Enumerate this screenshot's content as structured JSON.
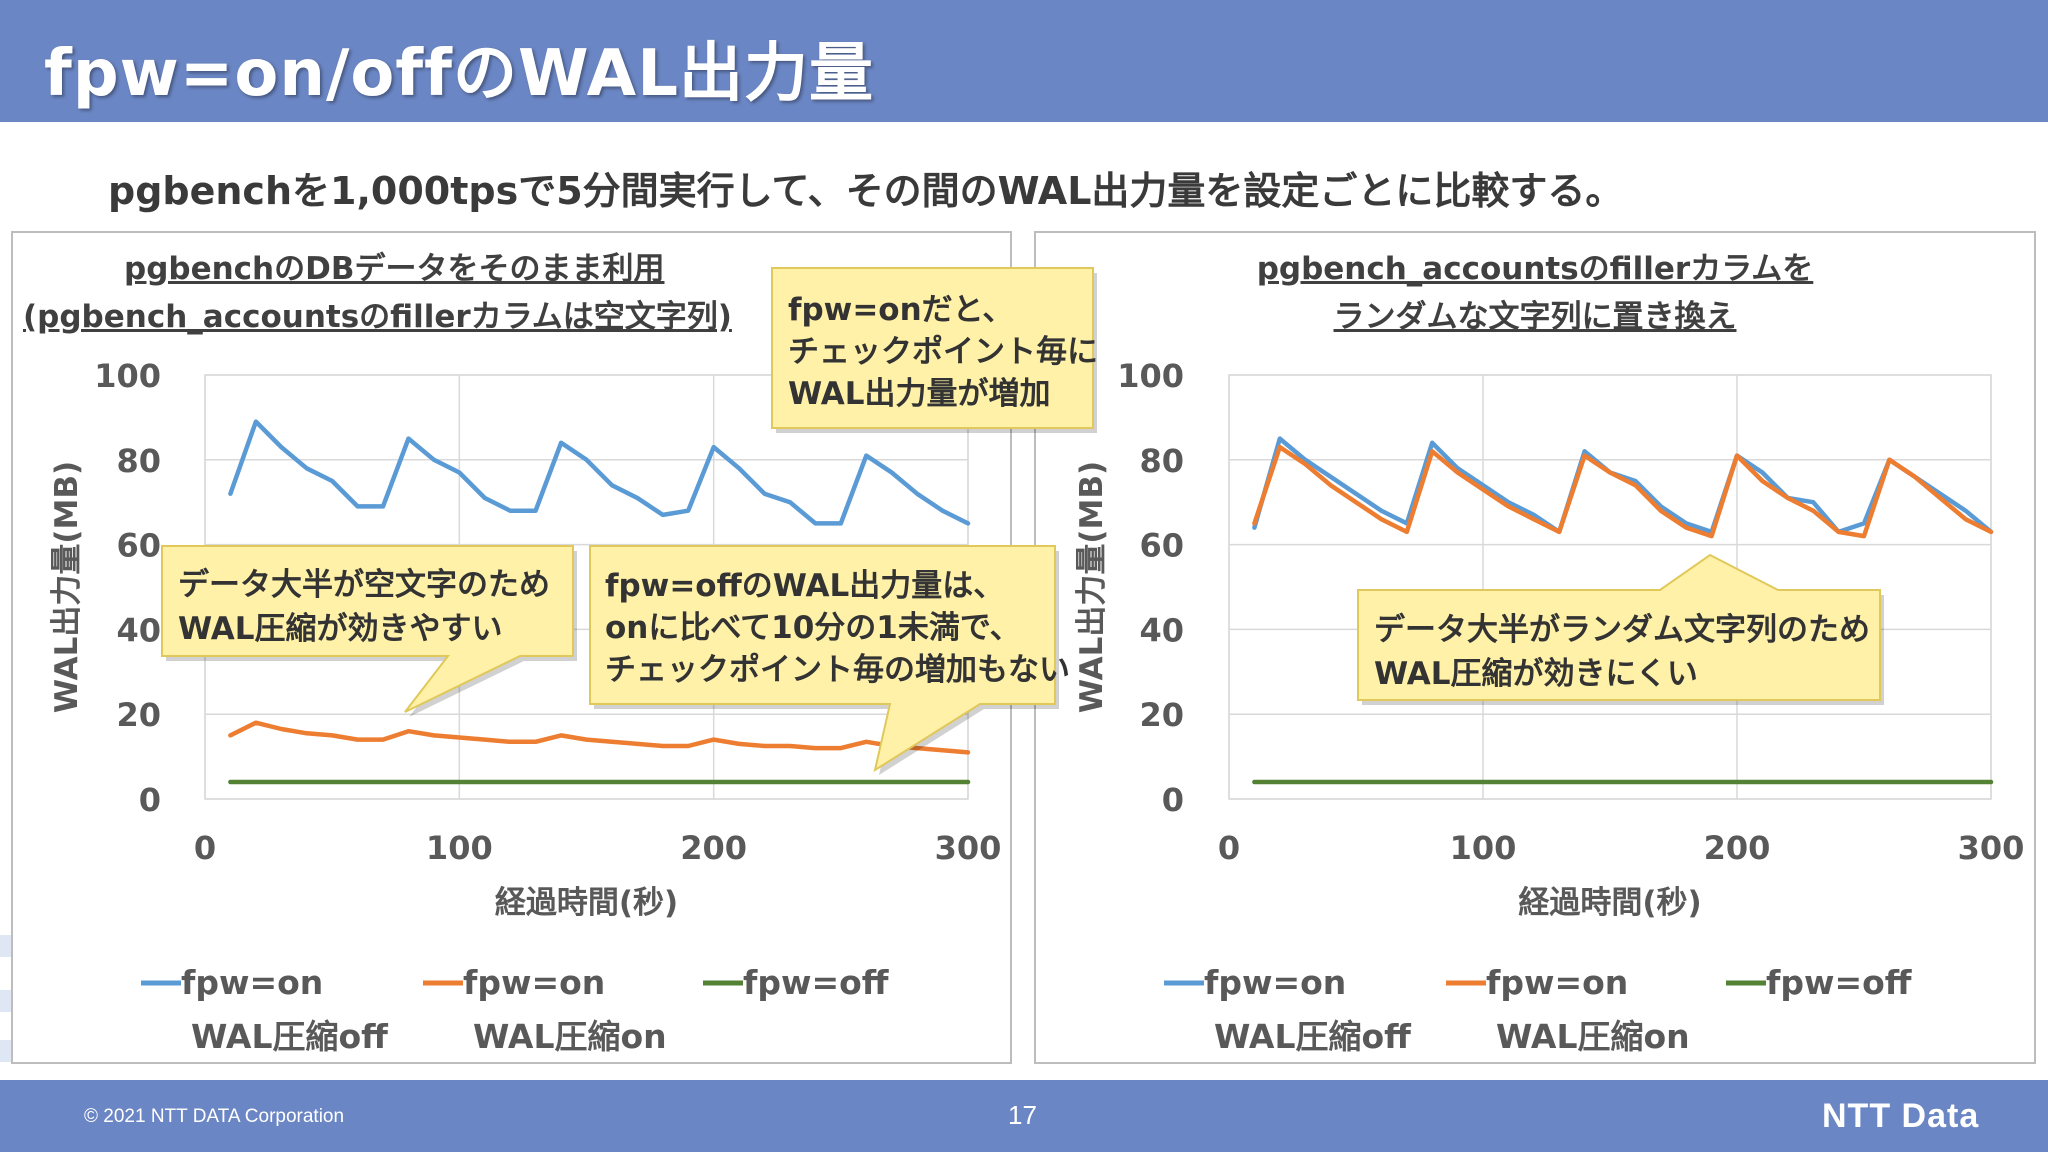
{
  "slide": {
    "title": "fpw=on/offのWAL出力量",
    "subtitle": "pgbenchを1,000tpsで5分間実行して、その間のWAL出力量を設定ごとに比較する。",
    "copyright": "© 2021 NTT DATA Corporation",
    "page_number": "17",
    "logo": "NTT Data"
  },
  "colors": {
    "header": "#6b86c4",
    "fpw_on_off": "#5b9bd5",
    "fpw_on_on": "#ed7d31",
    "fpw_off": "#548235",
    "callout_fill": "#fff2a8",
    "callout_border": "#e0c85a"
  },
  "panels": [
    {
      "title_line1": "pgbenchのDBデータをそのまま利用",
      "title_line2": "(pgbench_accountsのfillerカラムは空文字列)",
      "callouts": [
        {
          "lines": [
            "fpw=onだと、",
            "チェックポイント毎に",
            "WAL出力量が増加"
          ]
        },
        {
          "lines": [
            "データ大半が空文字のため",
            "WAL圧縮が効きやすい"
          ]
        },
        {
          "lines": [
            "fpw=offのWAL出力量は、",
            "onに比べて10分の1未満で、",
            "チェックポイント毎の増加もない"
          ]
        }
      ]
    },
    {
      "title_line1": "pgbench_accountsのfillerカラムを",
      "title_line2": "ランダムな文字列に置き換え",
      "callouts": [
        {
          "lines": [
            "データ大半がランダム文字列のため",
            "WAL圧縮が効きにくい"
          ]
        }
      ]
    }
  ],
  "chart_data": [
    {
      "type": "line",
      "xlabel": "経過時間(秒)",
      "ylabel": "WAL出力量(MB)",
      "xlim": [
        0,
        300
      ],
      "ylim": [
        0,
        100
      ],
      "xticks": [
        0,
        100,
        200,
        300
      ],
      "yticks": [
        0,
        20,
        40,
        60,
        80,
        100
      ],
      "grid": true,
      "legend_position": "bottom",
      "x": [
        10,
        20,
        30,
        40,
        50,
        60,
        70,
        80,
        90,
        100,
        110,
        120,
        130,
        140,
        150,
        160,
        170,
        180,
        190,
        200,
        210,
        220,
        230,
        240,
        250,
        260,
        270,
        280,
        290,
        300
      ],
      "series": [
        {
          "name_line1": "fpw=on",
          "name_line2": "WAL圧縮off",
          "color": "#5b9bd5",
          "values": [
            72,
            89,
            83,
            78,
            75,
            69,
            69,
            85,
            80,
            77,
            71,
            68,
            68,
            84,
            80,
            74,
            71,
            67,
            68,
            83,
            78,
            72,
            70,
            65,
            65,
            81,
            77,
            72,
            68,
            65
          ]
        },
        {
          "name_line1": "fpw=on",
          "name_line2": "WAL圧縮on",
          "color": "#ed7d31",
          "values": [
            15,
            18,
            16.5,
            15.5,
            15,
            14,
            14,
            16,
            15,
            14.5,
            14,
            13.5,
            13.5,
            15,
            14,
            13.5,
            13,
            12.5,
            12.5,
            14,
            13,
            12.5,
            12.5,
            12,
            12,
            13.5,
            12.5,
            12,
            11.5,
            11
          ]
        },
        {
          "name_line1": "fpw=off",
          "name_line2": "",
          "color": "#548235",
          "values": [
            4,
            4,
            4,
            4,
            4,
            4,
            4,
            4,
            4,
            4,
            4,
            4,
            4,
            4,
            4,
            4,
            4,
            4,
            4,
            4,
            4,
            4,
            4,
            4,
            4,
            4,
            4,
            4,
            4,
            4
          ]
        }
      ]
    },
    {
      "type": "line",
      "xlabel": "経過時間(秒)",
      "ylabel": "WAL出力量(MB)",
      "xlim": [
        0,
        300
      ],
      "ylim": [
        0,
        100
      ],
      "xticks": [
        0,
        100,
        200,
        300
      ],
      "yticks": [
        0,
        20,
        40,
        60,
        80,
        100
      ],
      "grid": true,
      "legend_position": "bottom",
      "x": [
        10,
        20,
        30,
        40,
        50,
        60,
        70,
        80,
        90,
        100,
        110,
        120,
        130,
        140,
        150,
        160,
        170,
        180,
        190,
        200,
        210,
        220,
        230,
        240,
        250,
        260,
        270,
        280,
        290,
        300
      ],
      "series": [
        {
          "name_line1": "fpw=on",
          "name_line2": "WAL圧縮off",
          "color": "#5b9bd5",
          "values": [
            64,
            85,
            80,
            76,
            72,
            68,
            65,
            84,
            78,
            74,
            70,
            67,
            63,
            82,
            77,
            75,
            69,
            65,
            63,
            81,
            77,
            71,
            70,
            63,
            65,
            80,
            76,
            72,
            68,
            63
          ]
        },
        {
          "name_line1": "fpw=on",
          "name_line2": "WAL圧縮on",
          "color": "#ed7d31",
          "values": [
            65,
            83,
            79,
            74,
            70,
            66,
            63,
            82,
            77,
            73,
            69,
            66,
            63,
            81,
            77,
            74,
            68,
            64,
            62,
            81,
            75,
            71,
            68,
            63,
            62,
            80,
            76,
            71,
            66,
            63
          ]
        },
        {
          "name_line1": "fpw=off",
          "name_line2": "",
          "color": "#548235",
          "values": [
            4,
            4,
            4,
            4,
            4,
            4,
            4,
            4,
            4,
            4,
            4,
            4,
            4,
            4,
            4,
            4,
            4,
            4,
            4,
            4,
            4,
            4,
            4,
            4,
            4,
            4,
            4,
            4,
            4,
            4
          ]
        }
      ]
    }
  ]
}
